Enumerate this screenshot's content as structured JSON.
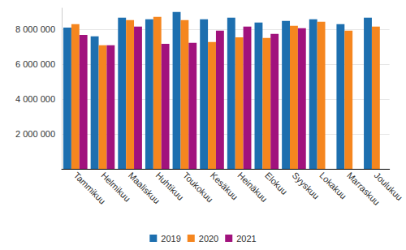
{
  "chart_data": {
    "type": "bar",
    "categories": [
      "Tammikuu",
      "Helmikuu",
      "Maaliskuu",
      "Huhtikuu",
      "Toukokuu",
      "Kesäkuu",
      "Heinäkuu",
      "Elokuu",
      "Syyskuu",
      "Lokakuu",
      "Marraskuu",
      "Joulukuu"
    ],
    "series": [
      {
        "name": "2019",
        "color": "#1d6faf",
        "values": [
          8090000,
          7580000,
          8650000,
          8560000,
          8980000,
          8560000,
          8650000,
          8370000,
          8470000,
          8560000,
          8280000,
          8650000
        ]
      },
      {
        "name": "2020",
        "color": "#f5861f",
        "values": [
          8280000,
          7070000,
          8510000,
          8700000,
          8510000,
          7260000,
          7530000,
          7490000,
          8190000,
          8420000,
          7910000,
          8140000
        ]
      },
      {
        "name": "2021",
        "color": "#a1127d",
        "values": [
          7670000,
          7070000,
          8140000,
          7160000,
          7210000,
          7910000,
          8140000,
          7720000,
          8050000,
          null,
          null,
          null
        ]
      }
    ],
    "ylim": [
      0,
      9200000
    ],
    "yticks": [
      {
        "value": 2000000,
        "label": "2 000 000"
      },
      {
        "value": 4000000,
        "label": "4 000 000"
      },
      {
        "value": 6000000,
        "label": "6 000 000"
      },
      {
        "value": 8000000,
        "label": "8 000 000"
      }
    ],
    "grid": true,
    "legend": "bottom"
  }
}
